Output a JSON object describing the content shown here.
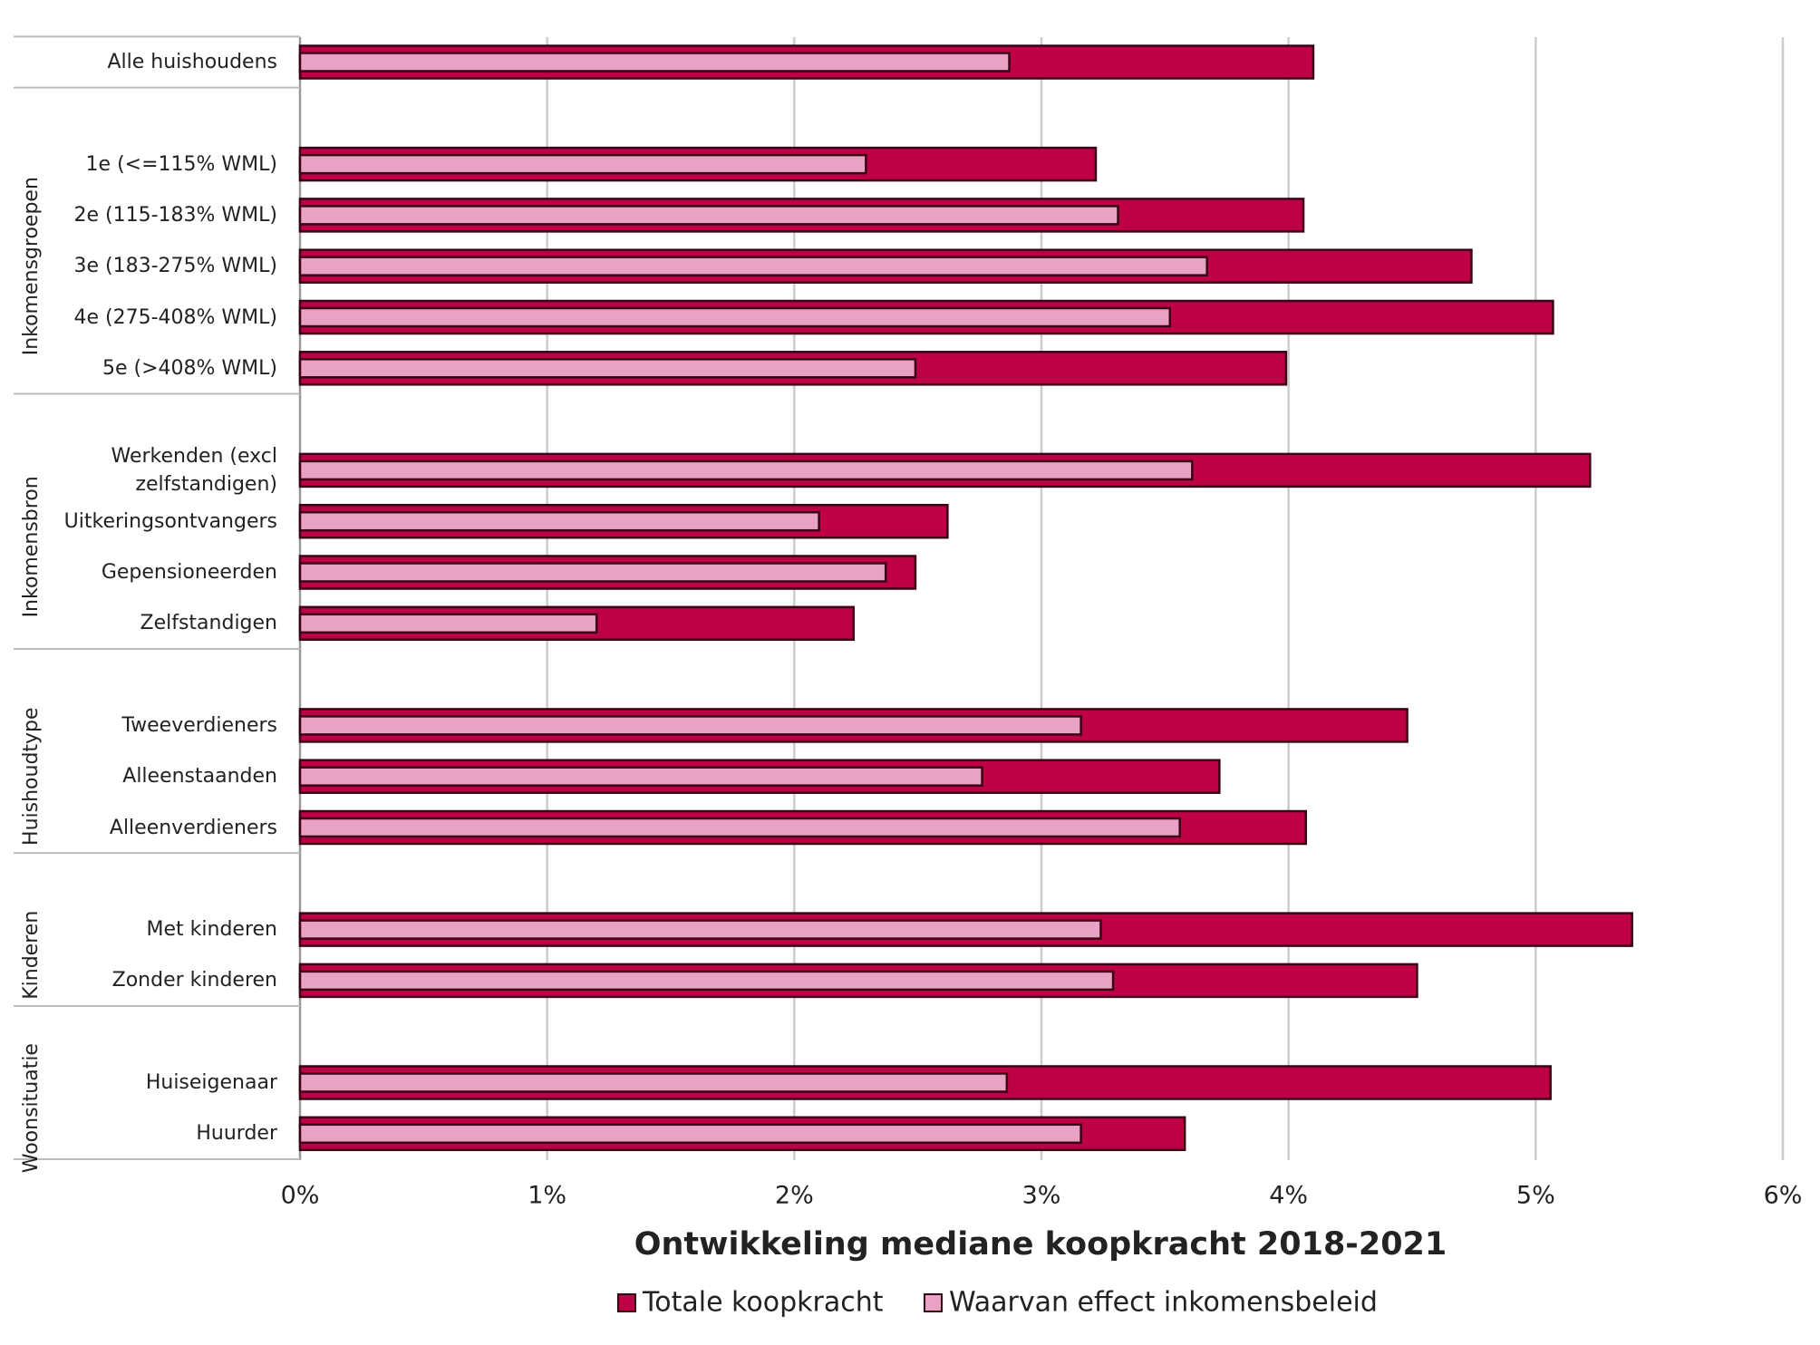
{
  "chart_data": {
    "type": "bar",
    "orientation": "horizontal",
    "xlabel": "Ontwikkeling mediane koopkracht 2018-2021",
    "groups": [
      {
        "categories": [
          "Alle huishoudens"
        ]
      },
      {
        "name": "Inkomensgroepen",
        "categories": [
          "1e (<=115% WML)",
          "2e (115-183% WML)",
          "3e (183-275% WML)",
          "4e (275-408% WML)",
          "5e (>408% WML)"
        ]
      },
      {
        "name": "Inkomensbron",
        "categories": [
          "Werkenden (excl zelfstandigen)",
          "Uitkeringsontvangers",
          "Gepensioneerden",
          "Zelfstandigen"
        ]
      },
      {
        "name": "Huishoudtype",
        "categories": [
          "Tweeverdieners",
          "Alleenstaanden",
          "Alleenverdieners"
        ]
      },
      {
        "name": "Kinderen",
        "categories": [
          "Met kinderen",
          "Zonder kinderen"
        ]
      },
      {
        "name": "Woonsituatie",
        "categories": [
          "Huiseigenaar",
          "Huurder"
        ]
      }
    ],
    "series": [
      {
        "name": "Totale koopkracht",
        "color": "#be0047",
        "values": [
          4.1,
          3.22,
          4.06,
          4.74,
          5.07,
          3.99,
          5.22,
          2.62,
          2.49,
          2.24,
          4.48,
          3.72,
          4.07,
          5.39,
          4.52,
          5.06,
          3.58
        ]
      },
      {
        "name": "Waarvan effect inkomensbeleid",
        "color": "#e8a3c4",
        "values": [
          2.87,
          2.29,
          3.31,
          3.67,
          3.52,
          2.49,
          3.61,
          2.1,
          2.37,
          1.2,
          3.16,
          2.76,
          3.56,
          3.24,
          3.29,
          2.86,
          3.16
        ]
      }
    ],
    "xlim": [
      0,
      6
    ],
    "xticks": [
      {
        "value": 0,
        "label": "0%"
      },
      {
        "value": 1,
        "label": "1%"
      },
      {
        "value": 2,
        "label": "2%"
      },
      {
        "value": 3,
        "label": "3%"
      },
      {
        "value": 4,
        "label": "4%"
      },
      {
        "value": 5,
        "label": "5%"
      },
      {
        "value": 6,
        "label": "6%"
      }
    ],
    "grid": true,
    "legend": "bottom"
  }
}
